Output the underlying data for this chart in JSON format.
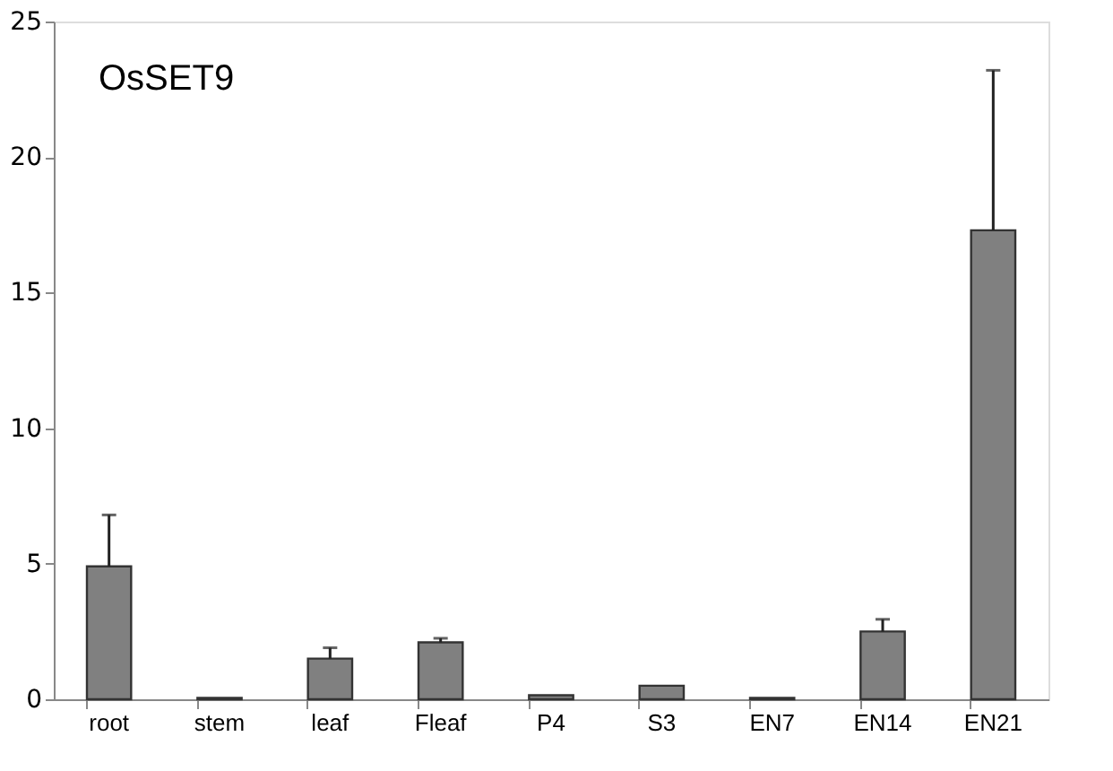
{
  "chart_data": {
    "type": "bar",
    "annotations": [
      "OsSET9"
    ],
    "categories": [
      "root",
      "stem",
      "leaf",
      "Fleaf",
      "P4",
      "S3",
      "EN7",
      "EN14",
      "EN21"
    ],
    "values": [
      4.9,
      0.05,
      1.5,
      2.1,
      0.15,
      0.5,
      0.05,
      2.5,
      17.3
    ],
    "errors": [
      [
        4.9,
        6.8
      ],
      null,
      [
        1.5,
        1.9
      ],
      [
        2.1,
        2.25
      ],
      null,
      null,
      null,
      [
        2.5,
        2.95
      ],
      [
        17.3,
        23.2
      ]
    ],
    "color": "#808080",
    "ylim": [
      0,
      25
    ],
    "yticks": [
      0,
      5,
      10,
      15,
      20,
      25
    ],
    "grid": false
  }
}
